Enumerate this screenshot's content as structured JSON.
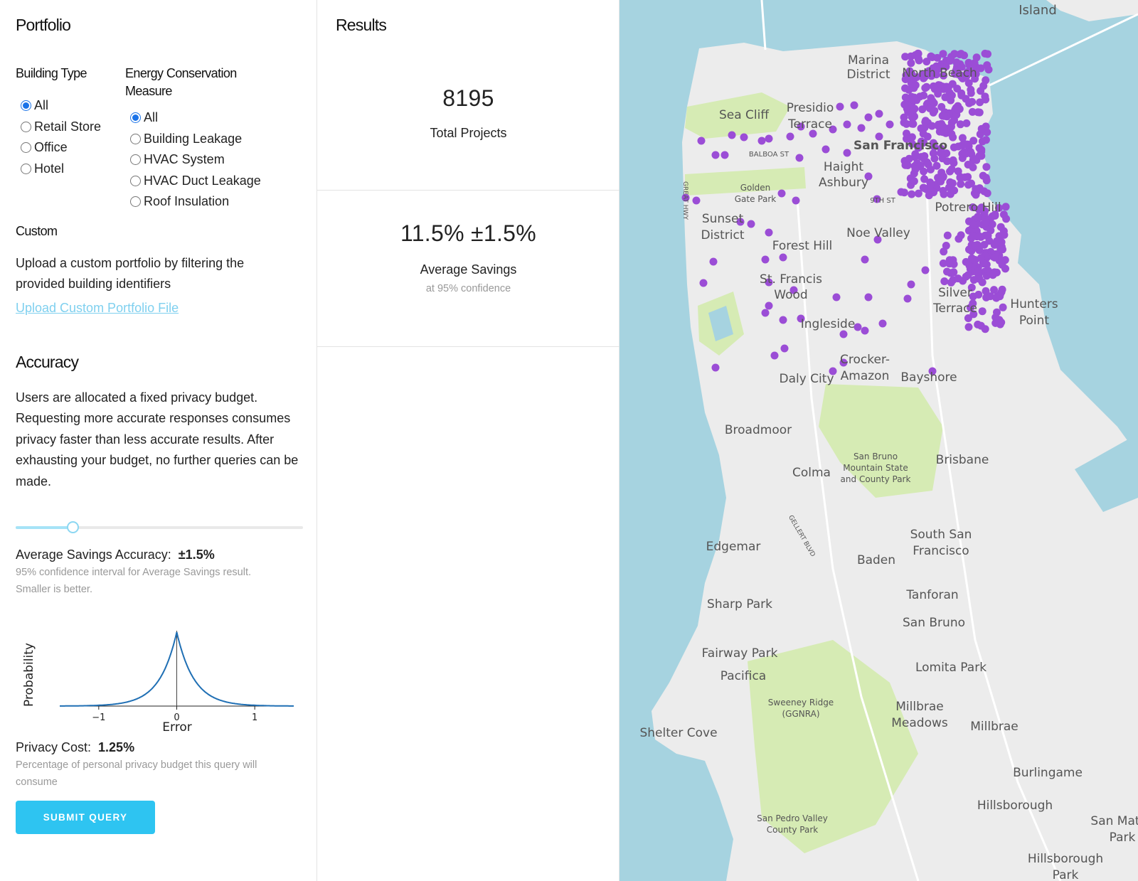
{
  "portfolio": {
    "title": "Portfolio",
    "building_type": {
      "title": "Building Type",
      "options": [
        "All",
        "Retail Store",
        "Office",
        "Hotel"
      ],
      "selected": "All"
    },
    "ecm": {
      "title": "Energy Conservation Measure",
      "options": [
        "All",
        "Building Leakage",
        "HVAC System",
        "HVAC Duct Leakage",
        "Roof Insulation"
      ],
      "selected": "All"
    },
    "custom": {
      "title": "Custom",
      "description": "Upload a custom portfolio by filtering the provided building identifiers",
      "upload_link": "Upload Custom Portfolio File"
    }
  },
  "accuracy": {
    "title": "Accuracy",
    "description": "Users are allocated a fixed privacy budget. Requesting more accurate responses consumes privacy faster than less accurate results. After exhausting your budget, no further queries can be made.",
    "slider_level": 0.2,
    "avg_savings_label": "Average Savings Accuracy:",
    "avg_savings_value": "±1.5%",
    "avg_savings_hint": "95% confidence interval for Average Savings result. Smaller is better.",
    "privacy_cost_label": "Privacy Cost:",
    "privacy_cost_value": "1.25%",
    "privacy_cost_hint": "Percentage of personal privacy budget this query will consume",
    "submit_label": "SUBMIT QUERY",
    "accent_color": "#2ec4f1"
  },
  "chart_data": {
    "type": "line",
    "xlabel": "Error",
    "ylabel": "Probability",
    "xticks": [
      "−1",
      "0",
      "1"
    ],
    "xlim": [
      -1.5,
      1.5
    ],
    "series": [
      {
        "distribution": "laplace",
        "scale": 0.22,
        "color": "#1f6fb4"
      }
    ]
  },
  "results": {
    "title": "Results",
    "total_projects_value": "8195",
    "total_projects_label": "Total Projects",
    "avg_savings_value": "11.5% ±1.5%",
    "avg_savings_label": "Average Savings",
    "avg_savings_sub": "at 95% confidence"
  },
  "map": {
    "marker_color": "#9b4dd6",
    "labels": {
      "island": "Island",
      "marina1": "Marina",
      "marina2": "District",
      "northbeach": "North Beach",
      "seacliff": "Sea Cliff",
      "presidio1": "Presidio",
      "presidio2": "Terrace",
      "sanfran": "San Francisco",
      "balboa": "BALBOA ST",
      "haight1": "Haight",
      "haight2": "Ashbury",
      "ggpark1": "Golden",
      "ggpark2": "Gate Park",
      "greathwy": "GREAT HWY",
      "ninth": "9TH ST",
      "sunset1": "Sunset",
      "sunset2": "District",
      "potrero": "Potrero Hill",
      "noe": "Noe Valley",
      "foresthill": "Forest Hill",
      "stfrancis1": "St. Francis",
      "stfrancis2": "Wood",
      "silver1": "Silver",
      "silver2": "Terrace",
      "hunters1": "Hunters",
      "hunters2": "Point",
      "ingleside": "Ingleside",
      "crocker1": "Crocker-",
      "crocker2": "Amazon",
      "daly": "Daly City",
      "bayshore": "Bayshore",
      "broadmoor": "Broadmoor",
      "sanbruno1": "San Bruno",
      "sanbruno2": "Mountain State",
      "sanbruno3": "and County Park",
      "brisbane": "Brisbane",
      "colma": "Colma",
      "gellert": "GELLERT BLVD",
      "edgemar": "Edgemar",
      "ssf1": "South San",
      "ssf2": "Francisco",
      "baden": "Baden",
      "sharp": "Sharp Park",
      "tanforan": "Tanforan",
      "sanbrunocity": "San Bruno",
      "fairway": "Fairway Park",
      "pacifica": "Pacifica",
      "lomita": "Lomita Park",
      "sweeney1": "Sweeney Ridge",
      "sweeney2": "(GGNRA)",
      "millbrae1": "Millbrae",
      "millbrae2": "Meadows",
      "millbrae": "Millbrae",
      "shelter": "Shelter Cove",
      "burlingame": "Burlingame",
      "hillsborough": "Hillsborough",
      "sanmateo1": "San Mat",
      "sanmateo2": "Park",
      "hillpark1": "Hillsborough",
      "hillpark2": "Park",
      "sanpedro1": "San Pedro Valley",
      "sanpedro2": "County Park"
    }
  }
}
